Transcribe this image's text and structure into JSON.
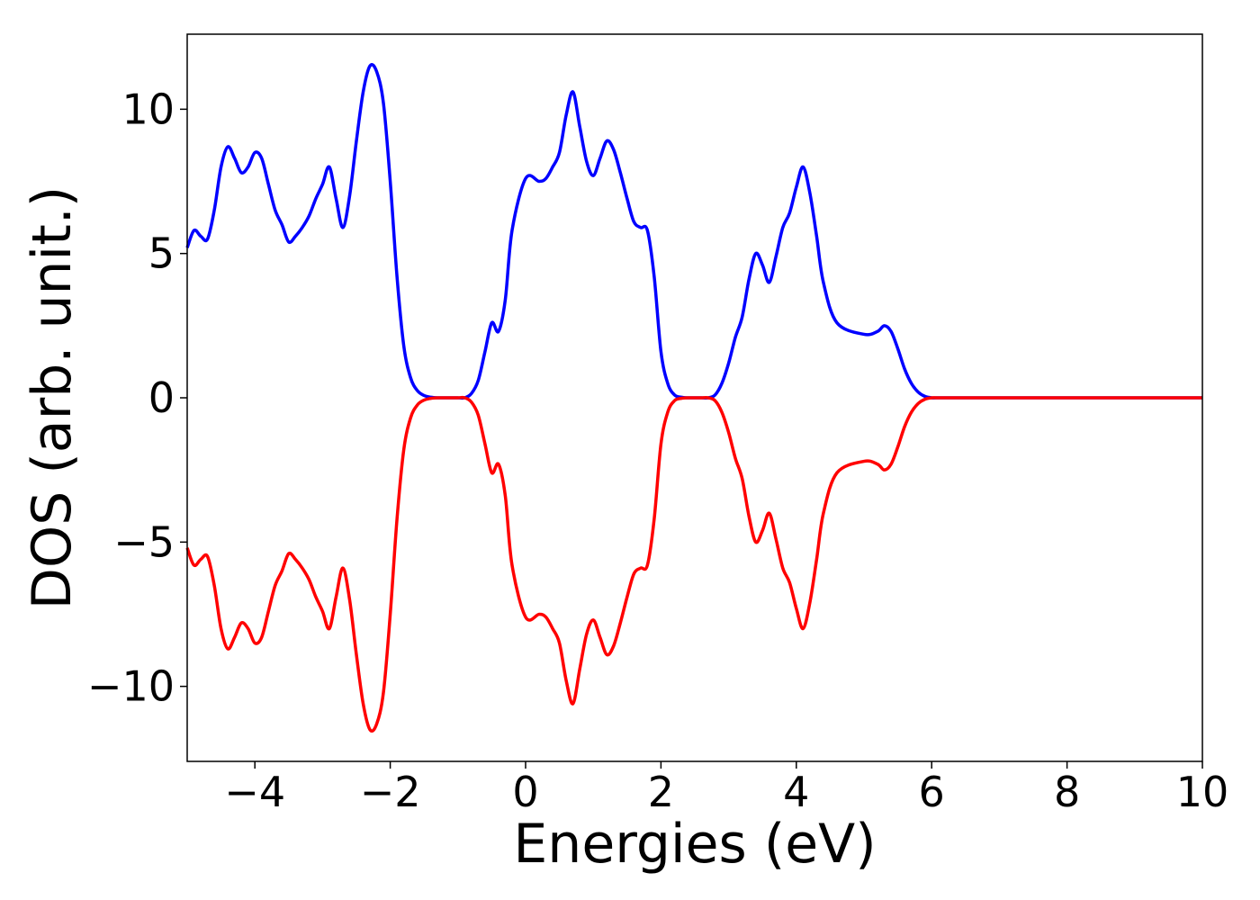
{
  "chart_data": {
    "type": "line",
    "title": "",
    "xlabel": "Energies (eV)",
    "ylabel": "DOS (arb. unit.)",
    "xlim": [
      -5,
      10
    ],
    "ylim": [
      -12.6,
      12.6
    ],
    "xticks": [
      -4,
      -2,
      0,
      2,
      4,
      6,
      8,
      10
    ],
    "xtick_labels": [
      "−4",
      "−2",
      "0",
      "2",
      "4",
      "6",
      "8",
      "10"
    ],
    "yticks": [
      -10,
      -5,
      0,
      5,
      10
    ],
    "ytick_labels": [
      "−10",
      "−5",
      "0",
      "5",
      "10"
    ],
    "grid": false,
    "legend": "none",
    "x": [
      -5.0,
      -4.9,
      -4.8,
      -4.7,
      -4.6,
      -4.5,
      -4.4,
      -4.3,
      -4.2,
      -4.1,
      -4.0,
      -3.9,
      -3.8,
      -3.7,
      -3.6,
      -3.5,
      -3.4,
      -3.3,
      -3.2,
      -3.1,
      -3.0,
      -2.9,
      -2.8,
      -2.7,
      -2.6,
      -2.5,
      -2.4,
      -2.3,
      -2.2,
      -2.1,
      -2.0,
      -1.9,
      -1.8,
      -1.7,
      -1.6,
      -1.5,
      -1.4,
      -1.3,
      -1.2,
      -1.1,
      -1.0,
      -0.9,
      -0.8,
      -0.7,
      -0.6,
      -0.5,
      -0.4,
      -0.3,
      -0.2,
      0.0,
      0.2,
      0.3,
      0.4,
      0.5,
      0.6,
      0.7,
      0.8,
      0.9,
      1.0,
      1.1,
      1.2,
      1.3,
      1.4,
      1.5,
      1.6,
      1.7,
      1.8,
      1.9,
      2.0,
      2.1,
      2.2,
      2.3,
      2.4,
      2.5,
      2.6,
      2.7,
      2.8,
      2.9,
      3.0,
      3.1,
      3.2,
      3.3,
      3.4,
      3.5,
      3.6,
      3.7,
      3.8,
      3.9,
      4.0,
      4.1,
      4.2,
      4.3,
      4.4,
      4.6,
      5.0,
      5.2,
      5.3,
      5.4,
      5.5,
      5.6,
      5.7,
      5.8,
      5.9,
      6.0,
      6.1,
      6.2,
      6.3,
      6.4,
      6.5,
      6.6,
      6.7,
      6.8,
      6.9,
      7.0,
      7.1,
      7.2,
      7.3,
      7.4,
      7.5,
      7.6,
      7.7,
      7.8,
      7.9,
      8.0,
      8.1,
      8.2,
      8.3,
      8.4,
      8.5,
      8.6,
      8.7,
      8.8,
      9.0,
      10.0
    ],
    "series": [
      {
        "color": "#0000ff",
        "values": [
          5.2,
          5.8,
          5.6,
          5.5,
          6.5,
          8.0,
          8.7,
          8.3,
          7.8,
          8.0,
          8.5,
          8.3,
          7.4,
          6.5,
          6.0,
          5.4,
          5.6,
          5.9,
          6.3,
          6.9,
          7.4,
          8.0,
          6.9,
          5.9,
          7.0,
          8.9,
          10.6,
          11.5,
          11.3,
          10.2,
          7.5,
          4.2,
          1.8,
          0.7,
          0.25,
          0.08,
          0.02,
          0.0,
          0.0,
          0.0,
          0.0,
          0.0,
          0.15,
          0.6,
          1.6,
          2.6,
          2.3,
          3.4,
          5.8,
          7.6,
          7.5,
          7.6,
          8.0,
          8.5,
          9.8,
          10.6,
          9.4,
          8.2,
          7.7,
          8.3,
          8.9,
          8.6,
          7.8,
          6.9,
          6.1,
          5.9,
          5.8,
          4.2,
          1.6,
          0.5,
          0.1,
          0.02,
          0.0,
          0.0,
          0.0,
          0.0,
          0.1,
          0.5,
          1.2,
          2.1,
          2.8,
          4.1,
          5.0,
          4.6,
          4.0,
          4.9,
          5.9,
          6.4,
          7.3,
          8.0,
          7.1,
          5.6,
          4.0,
          2.6,
          2.2,
          2.3,
          2.5,
          2.3,
          1.7,
          1.0,
          0.5,
          0.2,
          0.05,
          0.0,
          0.0,
          0.0,
          0.0,
          0.0,
          0.0,
          0.0,
          0.0,
          0.0,
          0.0,
          0.0,
          0.0,
          0.0,
          0.0,
          0.0,
          0.0,
          0.0,
          0.0,
          0.0,
          0.0,
          0.0,
          0.0,
          0.0,
          0.0,
          0.0,
          0.0,
          0.0,
          0.0,
          0.0,
          0.0,
          0.0
        ]
      },
      {
        "color": "#ff0000",
        "values": [
          -5.2,
          -5.8,
          -5.6,
          -5.5,
          -6.5,
          -8.0,
          -8.7,
          -8.3,
          -7.8,
          -8.0,
          -8.5,
          -8.3,
          -7.4,
          -6.5,
          -6.0,
          -5.4,
          -5.6,
          -5.9,
          -6.3,
          -6.9,
          -7.4,
          -8.0,
          -6.9,
          -5.9,
          -7.0,
          -8.9,
          -10.6,
          -11.5,
          -11.3,
          -10.2,
          -7.5,
          -4.2,
          -1.8,
          -0.7,
          -0.25,
          -0.08,
          -0.02,
          0.0,
          0.0,
          0.0,
          0.0,
          0.0,
          -0.15,
          -0.6,
          -1.6,
          -2.6,
          -2.3,
          -3.4,
          -5.8,
          -7.6,
          -7.5,
          -7.6,
          -8.0,
          -8.5,
          -9.8,
          -10.6,
          -9.4,
          -8.2,
          -7.7,
          -8.3,
          -8.9,
          -8.6,
          -7.8,
          -6.9,
          -6.1,
          -5.9,
          -5.8,
          -4.2,
          -1.6,
          -0.5,
          -0.1,
          -0.02,
          0.0,
          0.0,
          0.0,
          0.0,
          -0.1,
          -0.5,
          -1.2,
          -2.1,
          -2.8,
          -4.1,
          -5.0,
          -4.6,
          -4.0,
          -4.9,
          -5.9,
          -6.4,
          -7.3,
          -8.0,
          -7.1,
          -5.6,
          -4.0,
          -2.6,
          -2.2,
          -2.3,
          -2.5,
          -2.3,
          -1.7,
          -1.0,
          -0.5,
          -0.2,
          -0.05,
          0.0,
          0.0,
          0.0,
          0.0,
          0.0,
          0.0,
          0.0,
          0.0,
          0.0,
          0.0,
          0.0,
          0.0,
          0.0,
          0.0,
          0.0,
          0.0,
          0.0,
          0.0,
          0.0,
          0.0,
          0.0,
          0.0,
          0.0,
          0.0,
          0.0,
          0.0,
          0.0,
          0.0,
          0.0,
          0.0,
          0.0
        ]
      }
    ]
  }
}
